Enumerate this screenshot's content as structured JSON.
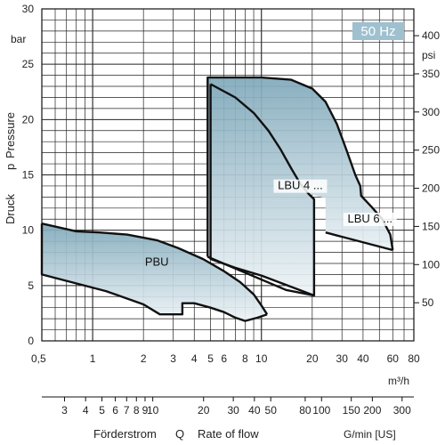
{
  "chart_data": {
    "type": "area",
    "badge": "50 Hz",
    "x_axis": {
      "scale": "log",
      "range": [
        0.5,
        80
      ],
      "unit": "m³/h",
      "ticks": [
        0.5,
        1,
        2,
        3,
        4,
        5,
        6,
        8,
        10,
        20,
        30,
        40,
        60,
        80
      ],
      "tick_labels": [
        "0,5",
        "1",
        "2",
        "3",
        "4",
        "5",
        "6",
        "8",
        "10",
        "20",
        "30",
        "40",
        "60",
        "80"
      ],
      "minor_grid": [
        0.6,
        0.7,
        0.8,
        0.9,
        1,
        2,
        3,
        4,
        5,
        6,
        7,
        8,
        9,
        10,
        20,
        30,
        40,
        50,
        60,
        70
      ]
    },
    "x_axis_secondary": {
      "scale": "log",
      "unit": "G/min [US]",
      "ticks": [
        3,
        4,
        5,
        6,
        7,
        8,
        9,
        10,
        20,
        30,
        40,
        50,
        80,
        100,
        150,
        200,
        300
      ],
      "tick_labels": [
        "3",
        "4",
        "5",
        "6",
        "7",
        "8",
        "9",
        "10",
        "20",
        "30",
        "40",
        "50",
        "80",
        "100",
        "150",
        "200",
        "300"
      ],
      "gpm_per_m3h": 4.4029
    },
    "y_axis": {
      "range": [
        0,
        30
      ],
      "unit": "bar",
      "ticks": [
        0,
        5,
        10,
        15,
        20,
        25,
        30
      ],
      "minor_step": 1
    },
    "y_axis_secondary": {
      "unit": "psi",
      "ticks": [
        50,
        100,
        150,
        200,
        250,
        300,
        350,
        400
      ],
      "psi_per_bar": 14.5038
    },
    "titles": {
      "y": [
        "Druck",
        "p",
        "Pressure"
      ],
      "x": [
        "Förderstrom",
        "Q",
        "Rate of flow"
      ]
    },
    "regions": [
      {
        "name": "PBU",
        "label_at": [
          2.4,
          6.8
        ],
        "points": [
          [
            0.5,
            10.6
          ],
          [
            0.8,
            9.9
          ],
          [
            1.1,
            9.8
          ],
          [
            1.6,
            9.6
          ],
          [
            2.4,
            9.1
          ],
          [
            3.2,
            8.4
          ],
          [
            4.5,
            7.4
          ],
          [
            6.0,
            6.3
          ],
          [
            7.5,
            5.3
          ],
          [
            9.0,
            4.2
          ],
          [
            10.0,
            3.2
          ],
          [
            10.8,
            2.4
          ],
          [
            9.5,
            2.1
          ],
          [
            8.0,
            1.8
          ],
          [
            7.0,
            2.1
          ],
          [
            6.0,
            2.6
          ],
          [
            5.0,
            3.0
          ],
          [
            4.0,
            3.4
          ],
          [
            3.4,
            3.4
          ],
          [
            3.4,
            2.4
          ],
          [
            2.9,
            2.4
          ],
          [
            2.5,
            2.4
          ],
          [
            2.0,
            3.3
          ],
          [
            1.2,
            4.5
          ],
          [
            0.5,
            6.0
          ]
        ]
      },
      {
        "name": "LBU 4 ...",
        "label_at": [
          17.0,
          13.7
        ],
        "points": [
          [
            5.0,
            23.2
          ],
          [
            7.0,
            22.0
          ],
          [
            9.0,
            20.6
          ],
          [
            11.0,
            19.0
          ],
          [
            13.0,
            17.3
          ],
          [
            15.0,
            15.6
          ],
          [
            17.0,
            14.2
          ],
          [
            19.0,
            13.3
          ],
          [
            20.5,
            12.8
          ],
          [
            20.5,
            4.1
          ],
          [
            10.0,
            5.9
          ],
          [
            7.0,
            6.6
          ],
          [
            5.0,
            7.4
          ]
        ]
      },
      {
        "name": "LBU 6 ...",
        "label_at": [
          44.0,
          10.7
        ],
        "points": [
          [
            4.8,
            23.8
          ],
          [
            10.0,
            23.8
          ],
          [
            15.0,
            23.6
          ],
          [
            20.0,
            22.8
          ],
          [
            24.0,
            21.6
          ],
          [
            28.0,
            19.6
          ],
          [
            32.0,
            17.2
          ],
          [
            36.0,
            15.0
          ],
          [
            38.5,
            14.0
          ],
          [
            39.0,
            13.1
          ],
          [
            45.0,
            12.1
          ],
          [
            52.0,
            11.0
          ],
          [
            58.0,
            9.6
          ],
          [
            60.0,
            8.2
          ],
          [
            24.0,
            9.8
          ],
          [
            24.0,
            11.0
          ],
          [
            24.0,
            12.9
          ],
          [
            19.0,
            13.3
          ],
          [
            17.0,
            14.2
          ],
          [
            15.0,
            15.6
          ],
          [
            13.0,
            17.3
          ],
          [
            11.0,
            19.0
          ],
          [
            9.0,
            20.6
          ],
          [
            7.0,
            22.0
          ],
          [
            5.0,
            23.2
          ],
          [
            5.0,
            7.4
          ],
          [
            4.8,
            7.6
          ]
        ]
      }
    ],
    "outlines": [
      {
        "name": "PBU-upper",
        "points": [
          [
            0.5,
            10.6
          ],
          [
            0.8,
            9.9
          ],
          [
            1.1,
            9.8
          ],
          [
            1.6,
            9.6
          ],
          [
            2.4,
            9.1
          ],
          [
            3.2,
            8.4
          ],
          [
            4.5,
            7.4
          ],
          [
            6.0,
            6.3
          ],
          [
            7.5,
            5.3
          ],
          [
            9.0,
            4.2
          ],
          [
            10.0,
            3.2
          ],
          [
            10.8,
            2.4
          ]
        ]
      },
      {
        "name": "PBU-lower",
        "points": [
          [
            0.5,
            10.6
          ],
          [
            0.5,
            6.0
          ],
          [
            1.2,
            4.5
          ],
          [
            2.0,
            3.3
          ],
          [
            2.5,
            2.4
          ],
          [
            3.4,
            2.4
          ],
          [
            3.4,
            3.4
          ],
          [
            4.0,
            3.4
          ],
          [
            5.0,
            3.0
          ],
          [
            6.0,
            2.6
          ],
          [
            7.0,
            2.1
          ],
          [
            8.0,
            1.8
          ],
          [
            9.5,
            2.1
          ],
          [
            10.8,
            2.4
          ]
        ]
      },
      {
        "name": "LBU4",
        "points": [
          [
            5.0,
            23.2
          ],
          [
            7.0,
            22.0
          ],
          [
            9.0,
            20.6
          ],
          [
            11.0,
            19.0
          ],
          [
            13.0,
            17.3
          ],
          [
            15.0,
            15.6
          ],
          [
            17.0,
            14.2
          ],
          [
            19.0,
            13.3
          ],
          [
            20.5,
            12.8
          ],
          [
            20.5,
            4.1
          ],
          [
            10.0,
            5.9
          ],
          [
            7.0,
            6.6
          ],
          [
            5.0,
            7.4
          ],
          [
            5.0,
            23.2
          ]
        ]
      },
      {
        "name": "LBU6-top",
        "points": [
          [
            4.8,
            7.6
          ],
          [
            4.8,
            23.8
          ],
          [
            10.0,
            23.8
          ],
          [
            15.0,
            23.6
          ],
          [
            20.0,
            22.8
          ],
          [
            24.0,
            21.6
          ],
          [
            28.0,
            19.6
          ],
          [
            32.0,
            17.2
          ],
          [
            36.0,
            15.0
          ],
          [
            38.5,
            14.0
          ],
          [
            39.0,
            13.1
          ],
          [
            45.0,
            12.1
          ],
          [
            52.0,
            11.0
          ],
          [
            58.0,
            9.6
          ],
          [
            60.0,
            8.2
          ]
        ]
      },
      {
        "name": "LBU6-bottom",
        "points": [
          [
            24.0,
            9.8
          ],
          [
            60.0,
            8.2
          ]
        ]
      },
      {
        "name": "PBU-to-LBU",
        "points": [
          [
            4.8,
            7.6
          ],
          [
            14.0,
            4.6
          ],
          [
            20.5,
            4.1
          ]
        ]
      }
    ]
  }
}
